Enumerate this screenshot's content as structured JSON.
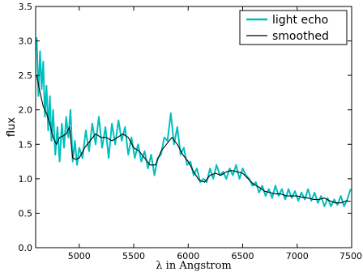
{
  "chart_data": {
    "type": "line",
    "title": "",
    "xlabel": "λ in Angstrom",
    "ylabel": "flux",
    "xlim": [
      4600,
      7500
    ],
    "ylim": [
      0.0,
      3.5
    ],
    "xticks": [
      5000,
      5500,
      6000,
      6500,
      7000,
      7500
    ],
    "yticks": [
      0.0,
      0.5,
      1.0,
      1.5,
      2.0,
      2.5,
      3.0,
      3.5
    ],
    "xtick_labels": [
      "5000",
      "5500",
      "6000",
      "6500",
      "7000",
      "7500"
    ],
    "ytick_labels": [
      "0.0",
      "0.5",
      "1.0",
      "1.5",
      "2.0",
      "2.5",
      "3.0",
      "3.5"
    ],
    "grid": false,
    "legend_position": "top-right",
    "series": [
      {
        "name": "light echo",
        "color": "#00BFBF",
        "x": [
          4610,
          4625,
          4640,
          4655,
          4670,
          4685,
          4700,
          4715,
          4730,
          4745,
          4760,
          4780,
          4800,
          4820,
          4840,
          4860,
          4880,
          4900,
          4920,
          4940,
          4960,
          4980,
          5000,
          5030,
          5060,
          5090,
          5120,
          5150,
          5180,
          5210,
          5240,
          5270,
          5300,
          5330,
          5360,
          5390,
          5420,
          5450,
          5480,
          5510,
          5540,
          5570,
          5600,
          5630,
          5660,
          5690,
          5720,
          5750,
          5780,
          5810,
          5840,
          5870,
          5900,
          5930,
          5960,
          5990,
          6020,
          6050,
          6080,
          6110,
          6140,
          6170,
          6200,
          6230,
          6260,
          6290,
          6320,
          6350,
          6380,
          6410,
          6440,
          6470,
          6500,
          6530,
          6560,
          6590,
          6620,
          6650,
          6680,
          6710,
          6740,
          6770,
          6800,
          6830,
          6860,
          6890,
          6920,
          6950,
          6980,
          7010,
          7040,
          7070,
          7100,
          7130,
          7160,
          7190,
          7220,
          7250,
          7280,
          7310,
          7340,
          7370,
          7400,
          7430,
          7460,
          7490
        ],
        "y": [
          3.05,
          2.2,
          2.85,
          2.3,
          2.7,
          1.9,
          2.35,
          1.7,
          2.2,
          1.55,
          2.0,
          1.35,
          1.75,
          1.25,
          1.8,
          1.45,
          1.9,
          1.6,
          2.0,
          1.25,
          1.55,
          1.2,
          1.45,
          1.3,
          1.7,
          1.4,
          1.8,
          1.5,
          1.9,
          1.45,
          1.75,
          1.3,
          1.8,
          1.5,
          1.85,
          1.55,
          1.75,
          1.35,
          1.6,
          1.3,
          1.5,
          1.25,
          1.4,
          1.15,
          1.35,
          1.05,
          1.3,
          1.35,
          1.6,
          1.55,
          1.95,
          1.5,
          1.75,
          1.35,
          1.45,
          1.2,
          1.25,
          1.05,
          1.15,
          0.95,
          1.0,
          0.95,
          1.15,
          1.0,
          1.2,
          1.05,
          1.1,
          1.0,
          1.15,
          1.05,
          1.2,
          1.0,
          1.15,
          1.05,
          1.0,
          0.9,
          0.95,
          0.8,
          0.9,
          0.75,
          0.85,
          0.72,
          0.9,
          0.75,
          0.85,
          0.7,
          0.85,
          0.72,
          0.82,
          0.68,
          0.8,
          0.7,
          0.85,
          0.68,
          0.8,
          0.65,
          0.75,
          0.6,
          0.72,
          0.6,
          0.7,
          0.62,
          0.75,
          0.6,
          0.7,
          0.85
        ]
      },
      {
        "name": "smoothed",
        "color": "#000000",
        "x": [
          4610,
          4640,
          4670,
          4700,
          4730,
          4760,
          4790,
          4820,
          4850,
          4880,
          4910,
          4940,
          4970,
          5000,
          5050,
          5100,
          5150,
          5200,
          5250,
          5300,
          5350,
          5400,
          5450,
          5500,
          5550,
          5600,
          5650,
          5700,
          5750,
          5800,
          5850,
          5900,
          5950,
          6000,
          6050,
          6100,
          6150,
          6200,
          6250,
          6300,
          6350,
          6400,
          6450,
          6500,
          6550,
          6600,
          6650,
          6700,
          6750,
          6800,
          6850,
          6900,
          6950,
          7000,
          7050,
          7100,
          7150,
          7200,
          7250,
          7300,
          7350,
          7400,
          7450,
          7490
        ],
        "y": [
          2.5,
          2.25,
          2.05,
          1.95,
          1.8,
          1.6,
          1.5,
          1.6,
          1.62,
          1.65,
          1.75,
          1.3,
          1.28,
          1.3,
          1.45,
          1.55,
          1.65,
          1.6,
          1.6,
          1.55,
          1.6,
          1.65,
          1.6,
          1.45,
          1.4,
          1.3,
          1.2,
          1.2,
          1.4,
          1.5,
          1.6,
          1.5,
          1.35,
          1.25,
          1.1,
          0.98,
          0.95,
          1.05,
          1.08,
          1.05,
          1.1,
          1.12,
          1.1,
          1.08,
          1.0,
          0.92,
          0.88,
          0.82,
          0.8,
          0.78,
          0.78,
          0.75,
          0.75,
          0.75,
          0.73,
          0.72,
          0.7,
          0.7,
          0.72,
          0.68,
          0.65,
          0.65,
          0.68,
          0.67
        ]
      }
    ]
  }
}
